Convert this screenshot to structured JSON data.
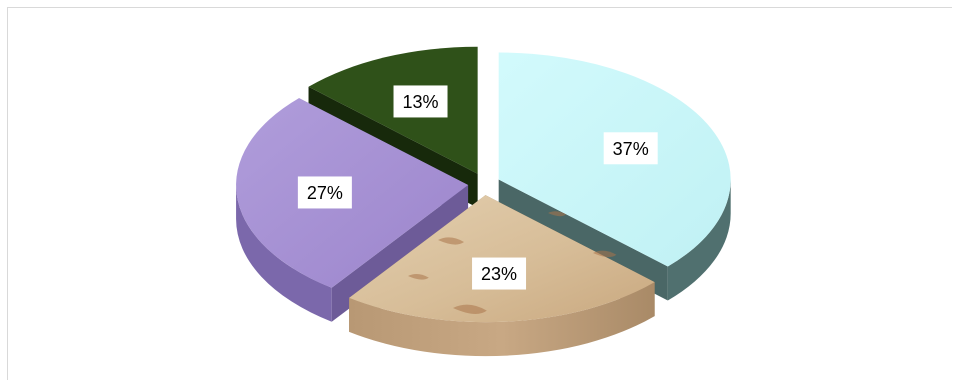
{
  "chart_data": {
    "type": "pie",
    "title": "",
    "series": [
      {
        "name": "",
        "values": [
          37,
          23,
          27,
          13
        ]
      }
    ],
    "categories": [
      "",
      "",
      "",
      ""
    ],
    "values": [
      37,
      23,
      27,
      13
    ],
    "labels": [
      "37%",
      "23%",
      "27%",
      "13%"
    ],
    "colors": [
      "#c6f6f8",
      "#d8bf9c",
      "#a68fd2",
      "#2e4f19"
    ],
    "style": "3d-exploded",
    "legend": "none"
  }
}
